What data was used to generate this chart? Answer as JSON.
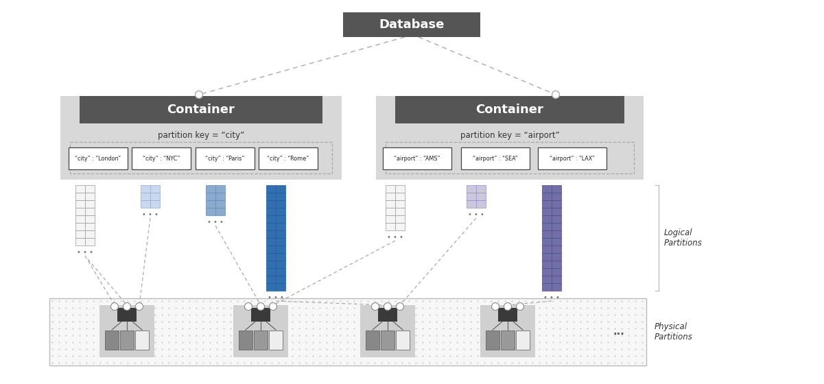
{
  "bg_color": "#ffffff",
  "dark_header": "#555555",
  "header_text_color": "#ffffff",
  "container_bg": "#d8d8d8",
  "london_color": "#f5f5f5",
  "nyc_color": "#c8d8ee",
  "paris_color": "#8aabcc",
  "rome_color": "#3070b0",
  "ams_color": "#f5f5f5",
  "sea_color": "#ccc8dc",
  "lax_color": "#7070a8",
  "title": "Database",
  "container1_title": "Container",
  "container2_title": "Container",
  "pk1": "partition key = “city”",
  "pk2": "partition key = “airport”",
  "keys1": [
    "“city” : “London”",
    "“city” : “NYC”",
    "“city” : “Paris”",
    "“city” : “Rome”"
  ],
  "keys2": [
    "“airport” : “AMS”",
    "“airport” : “SEA”",
    "“airport” : “LAX”"
  ],
  "logical_label": "Logical\nPartitions",
  "physical_label": "Physical\nPartitions",
  "conn_color": "#aaaaaa",
  "dash_color": "#999999"
}
